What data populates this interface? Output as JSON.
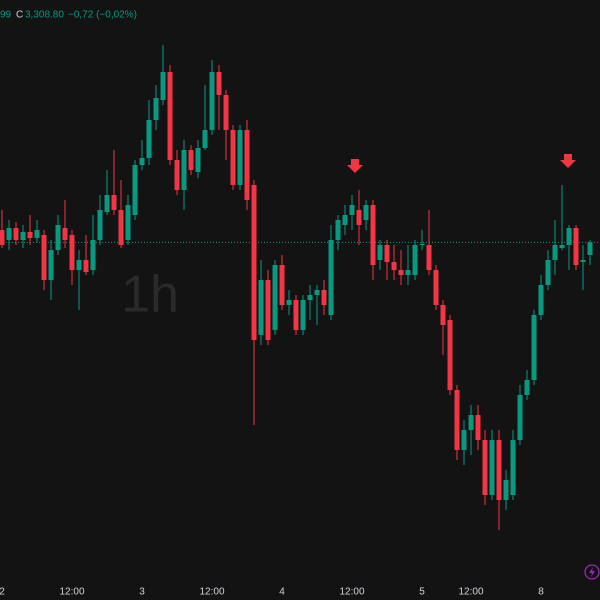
{
  "chart_data": {
    "type": "candlestick",
    "ohlc_header": {
      "prefix": "99",
      "c_label": "C",
      "close_text": "3,308.80",
      "change_text": "−0,72 (−0,02%)"
    },
    "watermark": "1h",
    "up_color": "#089981",
    "down_color": "#f23645",
    "ylim": [
      3140,
      3430
    ],
    "categories": [
      "2",
      null,
      null,
      null,
      null,
      null,
      null,
      null,
      null,
      null,
      "12:00",
      null,
      null,
      null,
      null,
      null,
      null,
      null,
      null,
      null,
      "3",
      null,
      null,
      null,
      null,
      null,
      null,
      null,
      null,
      null,
      "12:00",
      null,
      null,
      null,
      null,
      null,
      null,
      null,
      null,
      null,
      "4",
      null,
      null,
      null,
      null,
      null,
      null,
      null,
      null,
      null,
      "12:00",
      null,
      null,
      null,
      null,
      null,
      null,
      null,
      null,
      null,
      "5",
      null,
      null,
      null,
      null,
      null,
      null,
      "12:00",
      null,
      null,
      null,
      null,
      null,
      null,
      null,
      null,
      null,
      "8",
      null,
      null,
      null,
      null,
      null,
      null,
      null
    ],
    "open": [
      3315,
      3310,
      3316,
      3310,
      3314,
      3311,
      3312.5,
      3290,
      3305,
      3316,
      3312.5,
      3295,
      3300,
      3295,
      3310,
      3324,
      3332.5,
      3325,
      3310,
      3322.5,
      3347.5,
      3351,
      3370,
      3380,
      3394,
      3350,
      3335,
      3355,
      3344,
      3356,
      3365,
      3394,
      3382.5,
      3365,
      3337.5,
      3365,
      3337.5,
      3262.5,
      3290,
      3265,
      3297.5,
      3277.5,
      3280,
      3265,
      3280,
      3282.5,
      3285,
      3272.5,
      3310,
      3317.5,
      3322.5,
      3325,
      3320,
      3327.5,
      3300,
      3307.5,
      3299,
      3295,
      3292.5,
      3292.5,
      3307.5,
      3307.5,
      3295,
      3277.5,
      3270,
      3235,
      3205,
      3215,
      3222.5,
      3210,
      3182.5,
      3210,
      3180,
      3182.5,
      3210,
      3232.5,
      3240,
      3272.5,
      3287.5,
      3300,
      3306,
      3307.5,
      3316,
      3299,
      3302.5
    ],
    "close": [
      3307.5,
      3316,
      3310,
      3314,
      3311,
      3315,
      3290,
      3305,
      3317.5,
      3310,
      3295,
      3300,
      3294,
      3310,
      3325,
      3332.5,
      3325,
      3307.5,
      3327.5,
      3347.5,
      3351,
      3370,
      3381,
      3394,
      3350,
      3335,
      3355,
      3345,
      3356,
      3365,
      3394,
      3382.5,
      3365,
      3337.5,
      3365,
      3330,
      3260,
      3290,
      3260,
      3297.5,
      3277.5,
      3280,
      3265,
      3280,
      3282.5,
      3285,
      3277.5,
      3310,
      3320,
      3322.5,
      3327.5,
      3317.5,
      3327.5,
      3297.5,
      3307.5,
      3299,
      3295,
      3292.5,
      3295,
      3307.5,
      3308,
      3295,
      3277.5,
      3267.5,
      3235,
      3205,
      3215,
      3222.5,
      3210,
      3182.5,
      3210,
      3180,
      3190,
      3210,
      3232.5,
      3240,
      3272.5,
      3287.5,
      3300,
      3307.5,
      3307.5,
      3316,
      3297.5,
      3300,
      3308.8
    ],
    "high": [
      3325,
      3320,
      3319,
      3317.5,
      3322.5,
      3320,
      3315,
      3310,
      3322.5,
      3330,
      3315,
      3305,
      3312.5,
      3322.5,
      3332.5,
      3345,
      3355,
      3340,
      3332.5,
      3350,
      3360,
      3380,
      3387.5,
      3407.5,
      3397.5,
      3355,
      3360,
      3357.5,
      3360,
      3387.5,
      3400,
      3397.5,
      3385,
      3367.5,
      3367.5,
      3370,
      3340,
      3300,
      3295,
      3300,
      3302.5,
      3285,
      3282.5,
      3282.5,
      3287.5,
      3287.5,
      3290,
      3317.5,
      3322.5,
      3327.5,
      3332.5,
      3335,
      3330,
      3330,
      3310,
      3310,
      3307.5,
      3305,
      3307.5,
      3310,
      3315,
      3325,
      3297.5,
      3280,
      3272.5,
      3237.5,
      3220,
      3227.5,
      3227.5,
      3215,
      3215,
      3215,
      3195,
      3215,
      3237.5,
      3245,
      3275,
      3292.5,
      3305,
      3320,
      3337.5,
      3317.5,
      3317.5,
      3307.5,
      3310
    ],
    "low": [
      3306,
      3305,
      3307.5,
      3306,
      3307.5,
      3309,
      3285,
      3280,
      3302.5,
      3306,
      3287.5,
      3275,
      3292.5,
      3292.5,
      3307.5,
      3322.5,
      3322.5,
      3306,
      3307.5,
      3320,
      3345,
      3347.5,
      3365,
      3377.5,
      3347.5,
      3332.5,
      3325,
      3342.5,
      3341,
      3355,
      3362.5,
      3365,
      3350,
      3335,
      3335,
      3325,
      3217.5,
      3257.5,
      3257.5,
      3262.5,
      3275,
      3272.5,
      3262.5,
      3262.5,
      3270,
      3267.5,
      3272.5,
      3270,
      3305,
      3312.5,
      3315,
      3307.5,
      3315,
      3290,
      3295,
      3290,
      3290,
      3287.5,
      3287.5,
      3290,
      3305,
      3292.5,
      3275,
      3252.5,
      3232.5,
      3200,
      3197.5,
      3202.5,
      3205,
      3177.5,
      3180,
      3165,
      3175,
      3180,
      3207.5,
      3230,
      3237.5,
      3270,
      3285,
      3292.5,
      3305,
      3295,
      3295,
      3285,
      3297.5
    ]
  }
}
